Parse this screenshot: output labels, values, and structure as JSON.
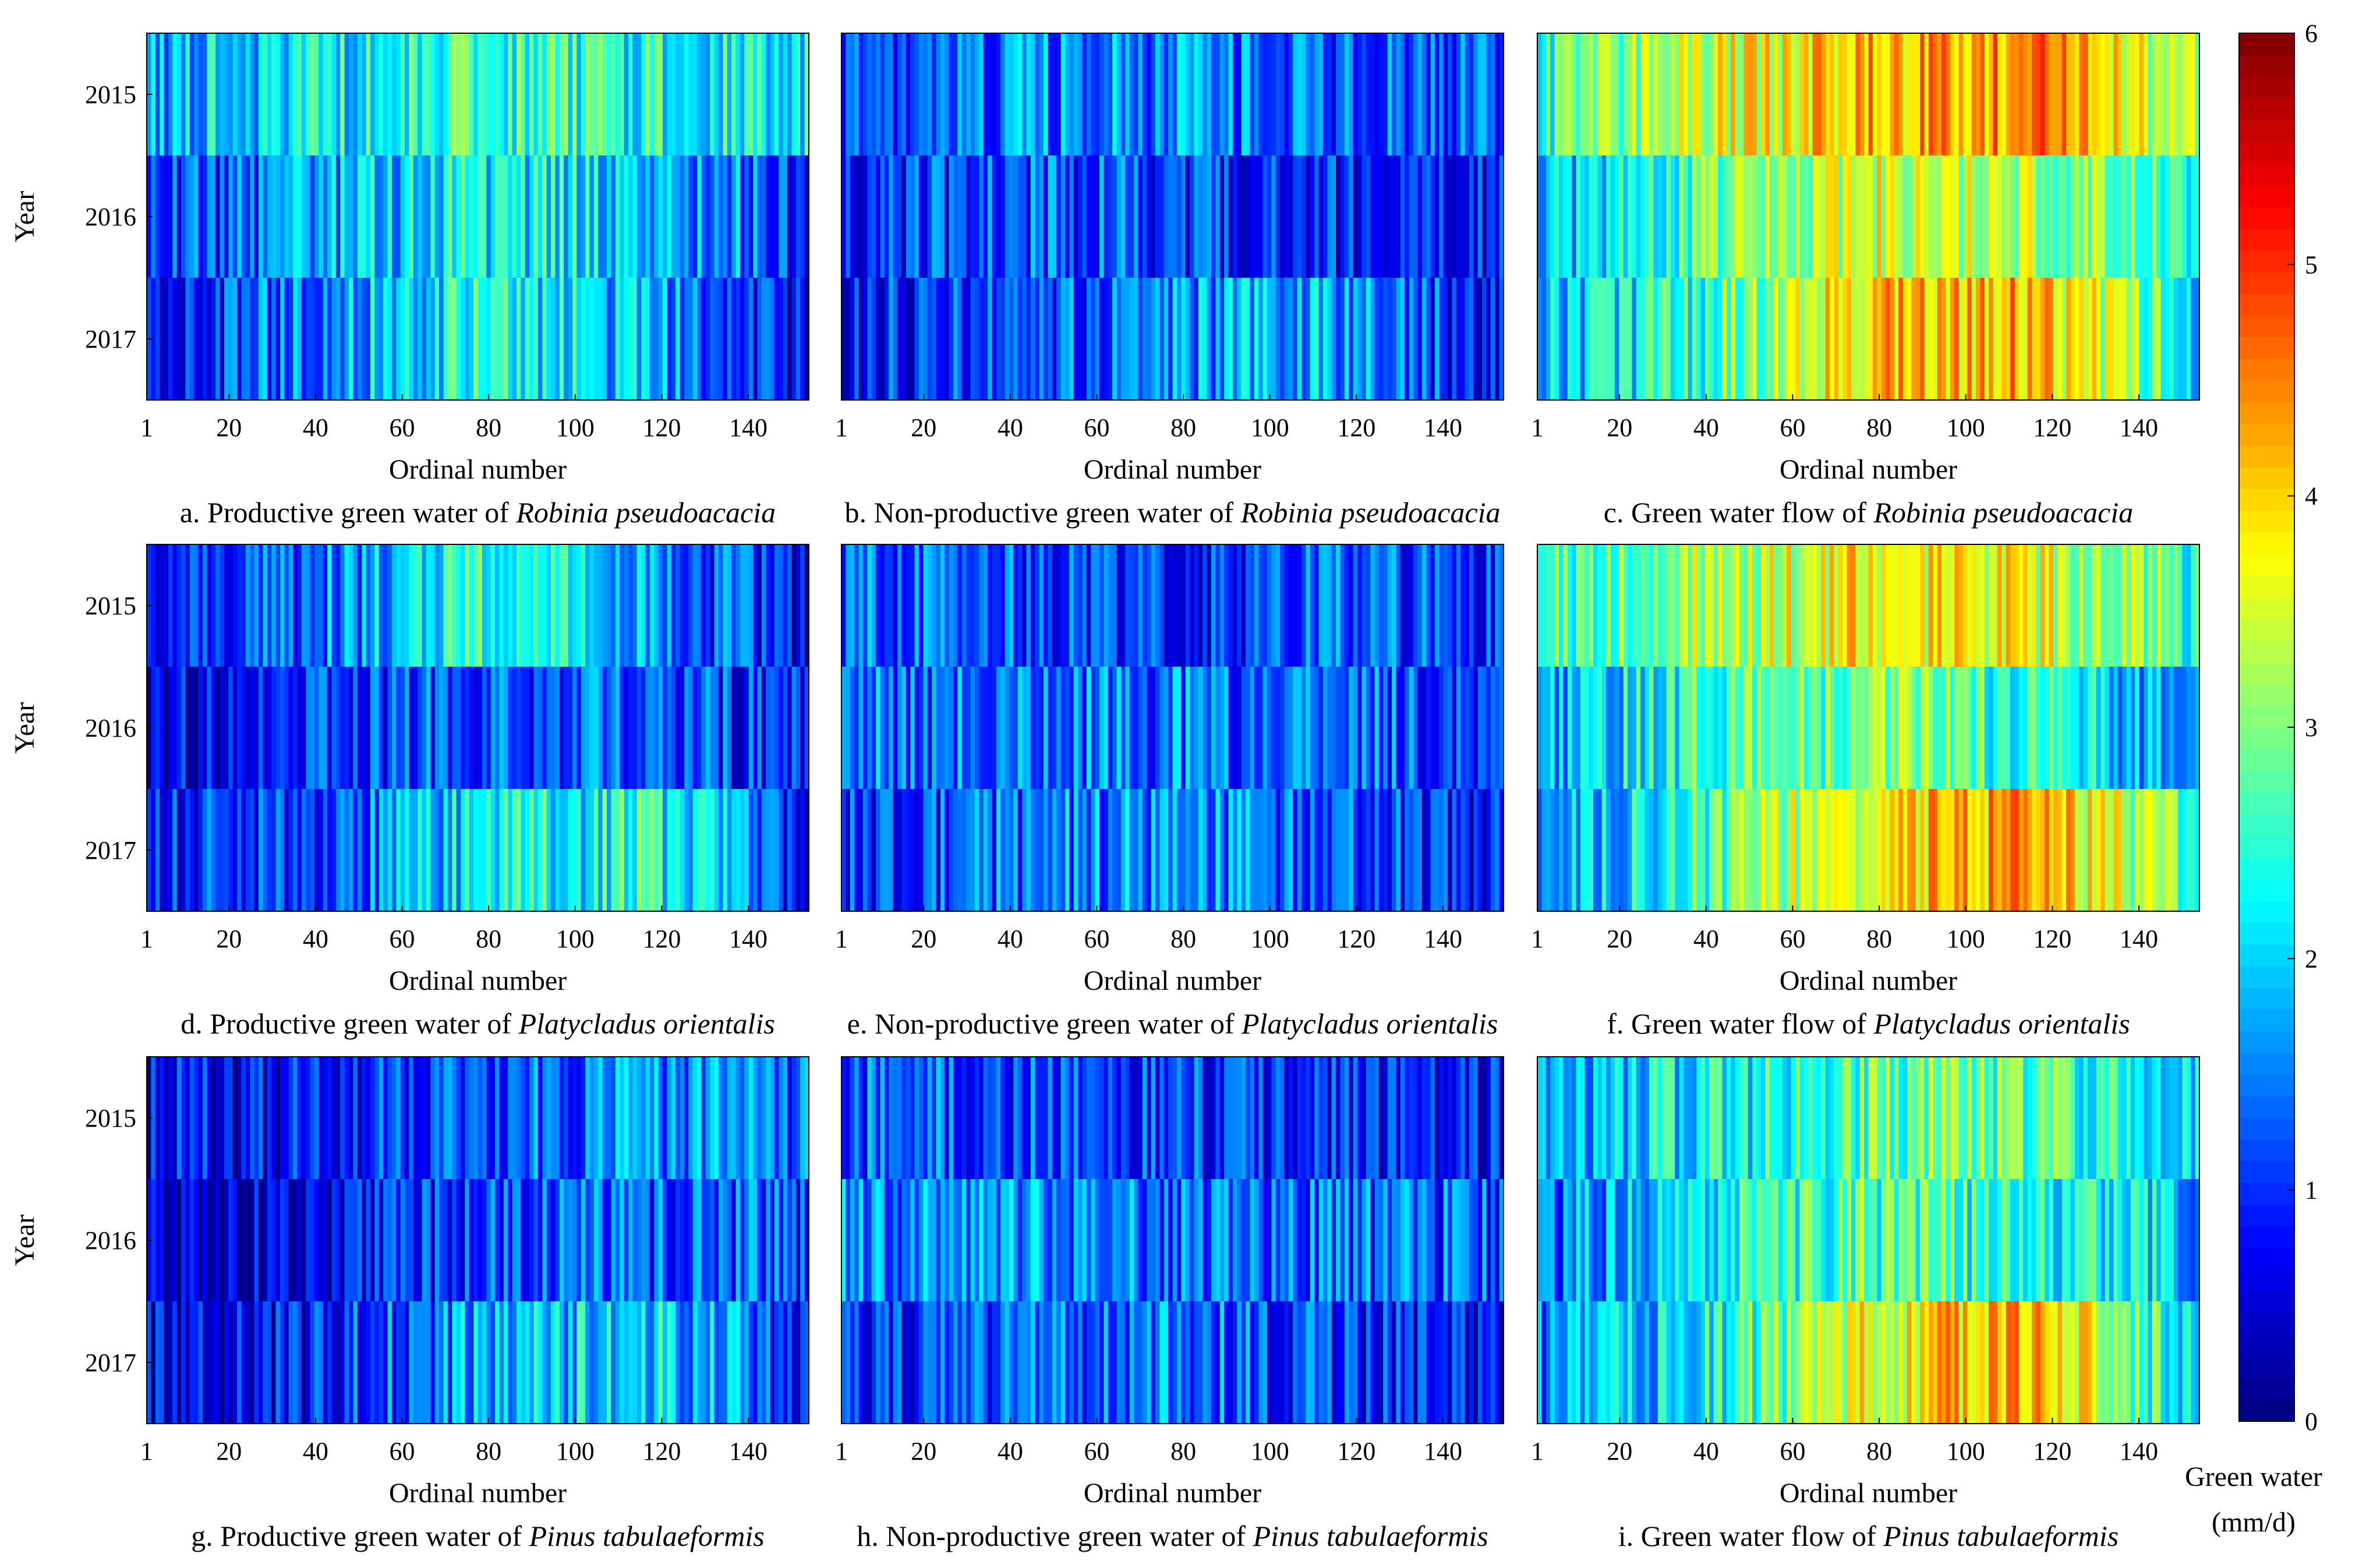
{
  "figure": {
    "colorbar": {
      "label_line1": "Green water",
      "label_line2": "(mm/d)",
      "min": 0,
      "max": 6,
      "ticks": [
        "0",
        "1",
        "2",
        "3",
        "4",
        "5",
        "6"
      ],
      "colormap": "jet"
    }
  },
  "chart_data": {
    "type": "heatmap",
    "x_label": "Ordinal number",
    "y_label": "Year",
    "x_ticks": [
      "1",
      "20",
      "40",
      "60",
      "80",
      "100",
      "120",
      "140"
    ],
    "x_range": [
      1,
      154
    ],
    "years": [
      "2015",
      "2016",
      "2017"
    ],
    "units": "mm/d",
    "value_range": [
      0,
      6
    ],
    "panels": [
      {
        "id": "a",
        "caption_prefix": "a. Productive green water of ",
        "species": "Robinia pseudoacacia",
        "levels": [
          [
            1.8,
            2.2,
            2.6,
            2.4,
            2.2
          ],
          [
            0.9,
            1.6,
            2.3,
            2.0,
            1.1
          ],
          [
            0.8,
            1.6,
            2.4,
            1.8,
            0.6
          ]
        ]
      },
      {
        "id": "b",
        "caption_prefix": "b. Non-productive green water of ",
        "species": "Robinia pseudoacacia",
        "levels": [
          [
            1.3,
            1.5,
            1.6,
            1.4,
            1.2
          ],
          [
            0.8,
            1.3,
            1.1,
            0.9,
            0.8
          ],
          [
            0.9,
            1.1,
            1.6,
            1.8,
            0.7
          ]
        ]
      },
      {
        "id": "c",
        "caption_prefix": "c. Green water flow of ",
        "species": "Robinia pseudoacacia",
        "levels": [
          [
            2.6,
            3.4,
            4.2,
            4.4,
            3.0
          ],
          [
            1.8,
            2.8,
            3.5,
            3.3,
            2.6
          ],
          [
            1.8,
            2.6,
            4.0,
            4.2,
            2.2
          ]
        ]
      },
      {
        "id": "d",
        "caption_prefix": "d. Productive green water of ",
        "species": "Platycladus orientalis",
        "levels": [
          [
            0.9,
            1.4,
            2.4,
            1.8,
            0.6
          ],
          [
            0.5,
            1.0,
            1.3,
            1.3,
            0.8
          ],
          [
            0.8,
            1.2,
            2.2,
            2.4,
            0.9
          ]
        ]
      },
      {
        "id": "e",
        "caption_prefix": "e. Non-productive green water of ",
        "species": "Platycladus orientalis",
        "levels": [
          [
            1.4,
            1.2,
            0.9,
            1.3,
            1.1
          ],
          [
            1.4,
            1.5,
            1.4,
            1.3,
            1.2
          ],
          [
            1.1,
            1.4,
            1.6,
            1.3,
            0.8
          ]
        ]
      },
      {
        "id": "f",
        "caption_prefix": "f. Green water flow of ",
        "species": "Platycladus orientalis",
        "levels": [
          [
            2.6,
            3.2,
            3.8,
            3.6,
            2.6
          ],
          [
            1.6,
            2.6,
            3.0,
            2.4,
            1.6
          ],
          [
            1.6,
            2.6,
            3.8,
            4.4,
            2.4
          ]
        ]
      },
      {
        "id": "g",
        "caption_prefix": "g. Productive green water of ",
        "species": "Pinus tabulaeformis",
        "levels": [
          [
            0.7,
            0.8,
            1.2,
            1.6,
            1.3
          ],
          [
            0.4,
            0.5,
            1.1,
            1.3,
            1.2
          ],
          [
            0.7,
            0.9,
            1.7,
            2.2,
            0.9
          ]
        ]
      },
      {
        "id": "h",
        "caption_prefix": "h. Non-productive green water of ",
        "species": "Pinus tabulaeformis",
        "levels": [
          [
            1.3,
            1.2,
            1.1,
            0.9,
            0.8
          ],
          [
            1.6,
            1.7,
            1.4,
            1.3,
            1.3
          ],
          [
            0.9,
            1.2,
            1.5,
            1.0,
            0.6
          ]
        ]
      },
      {
        "id": "i",
        "caption_prefix": "i. Green water flow of ",
        "species": "Pinus tabulaeformis",
        "levels": [
          [
            1.8,
            2.2,
            2.8,
            2.8,
            2.2
          ],
          [
            1.4,
            2.2,
            2.7,
            2.5,
            1.8
          ],
          [
            1.5,
            2.2,
            3.6,
            4.4,
            2.0
          ]
        ]
      }
    ]
  }
}
